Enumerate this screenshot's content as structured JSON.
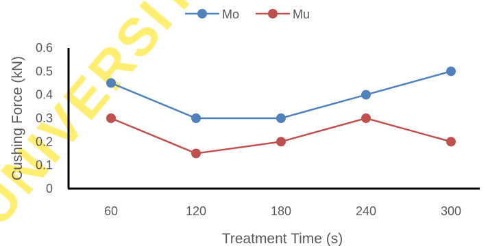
{
  "watermark_text": "UNIVERSITY OF",
  "chart_data": {
    "type": "line",
    "categories": [
      "60",
      "120",
      "180",
      "240",
      "300"
    ],
    "series": [
      {
        "name": "Mo",
        "color": "#4f81bd",
        "values": [
          0.45,
          0.3,
          0.3,
          0.4,
          0.5
        ]
      },
      {
        "name": "Mu",
        "color": "#c0504d",
        "values": [
          0.3,
          0.15,
          0.2,
          0.3,
          0.2
        ]
      }
    ],
    "xlabel": "Treatment Time (s)",
    "ylabel": "Cushing Force (kN)",
    "ylim": [
      0,
      0.6
    ],
    "yticks": [
      "0",
      "0.1",
      "0.2",
      "0.3",
      "0.4",
      "0.5",
      "0.6"
    ],
    "grid": false,
    "legend_position": "top"
  }
}
